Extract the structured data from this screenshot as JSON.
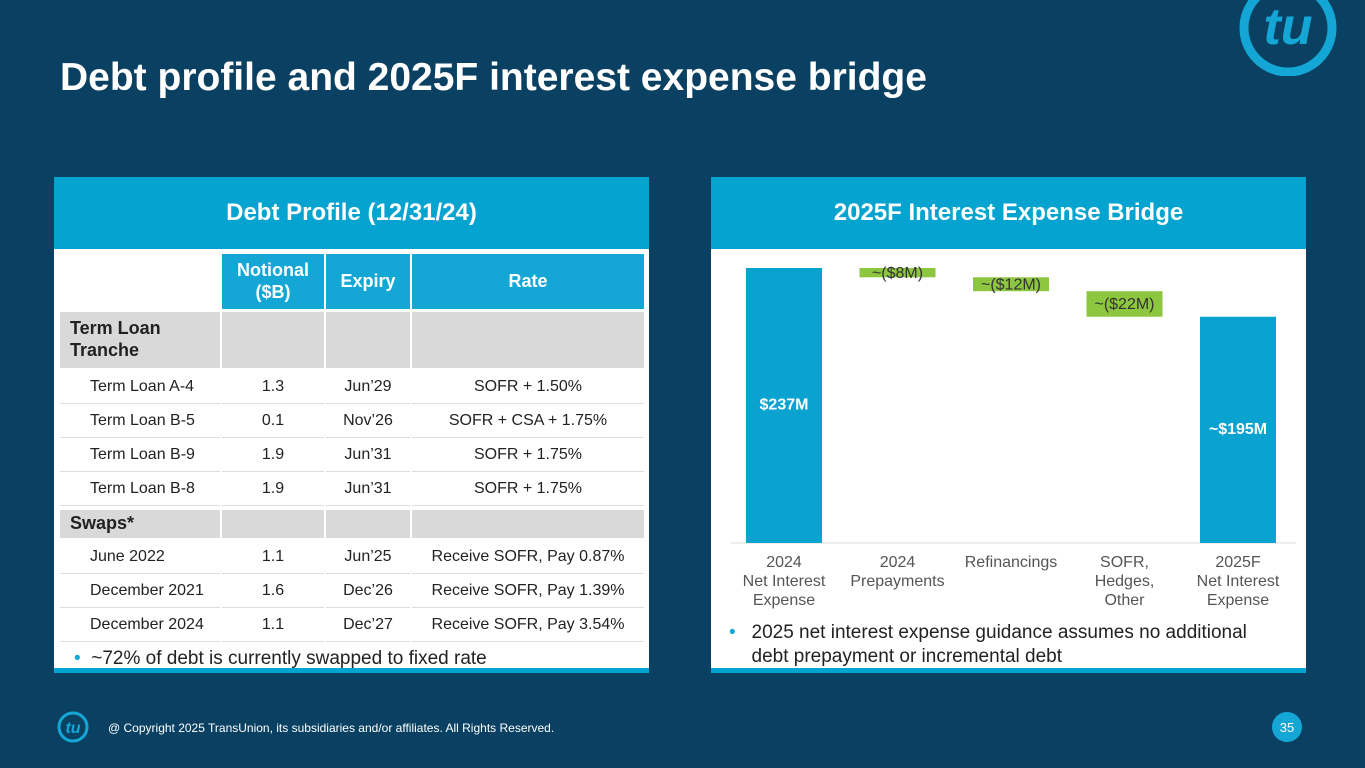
{
  "title": "Debt profile and 2025F interest expense bridge",
  "left_panel": {
    "heading": "Debt Profile (12/31/24)",
    "table": {
      "columns": [
        "Notional\n($B)",
        "Expiry",
        "Rate"
      ],
      "groups": [
        {
          "name": "Term Loan\nTranche",
          "rows": [
            [
              "Term Loan A-4",
              1.3,
              "Jun’29",
              "SOFR + 1.50%"
            ],
            [
              "Term Loan B-5",
              0.1,
              "Nov’26",
              "SOFR + CSA + 1.75%"
            ],
            [
              "Term Loan B-9",
              1.9,
              "Jun’31",
              "SOFR + 1.75%"
            ],
            [
              "Term Loan B-8",
              1.9,
              "Jun’31",
              "SOFR + 1.75%"
            ]
          ]
        },
        {
          "name": "Swaps*",
          "rows": [
            [
              "June 2022",
              1.1,
              "Jun’25",
              "Receive SOFR, Pay 0.87%"
            ],
            [
              "December 2021",
              1.6,
              "Dec’26",
              "Receive SOFR, Pay 1.39%"
            ],
            [
              "December 2024",
              1.1,
              "Dec’27",
              "Receive SOFR, Pay 3.54%"
            ]
          ]
        }
      ]
    },
    "note": "~72% of debt is currently swapped to fixed rate"
  },
  "chart_data": {
    "type": "waterfall",
    "title": "2025F Interest Expense Bridge",
    "categories": [
      "2024\nNet Interest\nExpense",
      "2024\nPrepayments",
      "Refinancings",
      "SOFR,\nHedges,\nOther",
      "2025F\nNet Interest\nExpense"
    ],
    "values": [
      237,
      -8,
      -12,
      -22,
      195
    ],
    "value_labels": [
      "$237M",
      "~($8M)",
      "~($12M)",
      "~($22M)",
      "~$195M"
    ],
    "color": "#0aa3cf",
    "change_color": "#8dc63f",
    "note": "2025 net interest expense guidance assumes no additional debt prepayment or incremental debt"
  },
  "footer": {
    "copyright": "@ Copyright 2025 TransUnion, its subsidiaries and/or affiliates.  All Rights Reserved.",
    "page": 35
  }
}
